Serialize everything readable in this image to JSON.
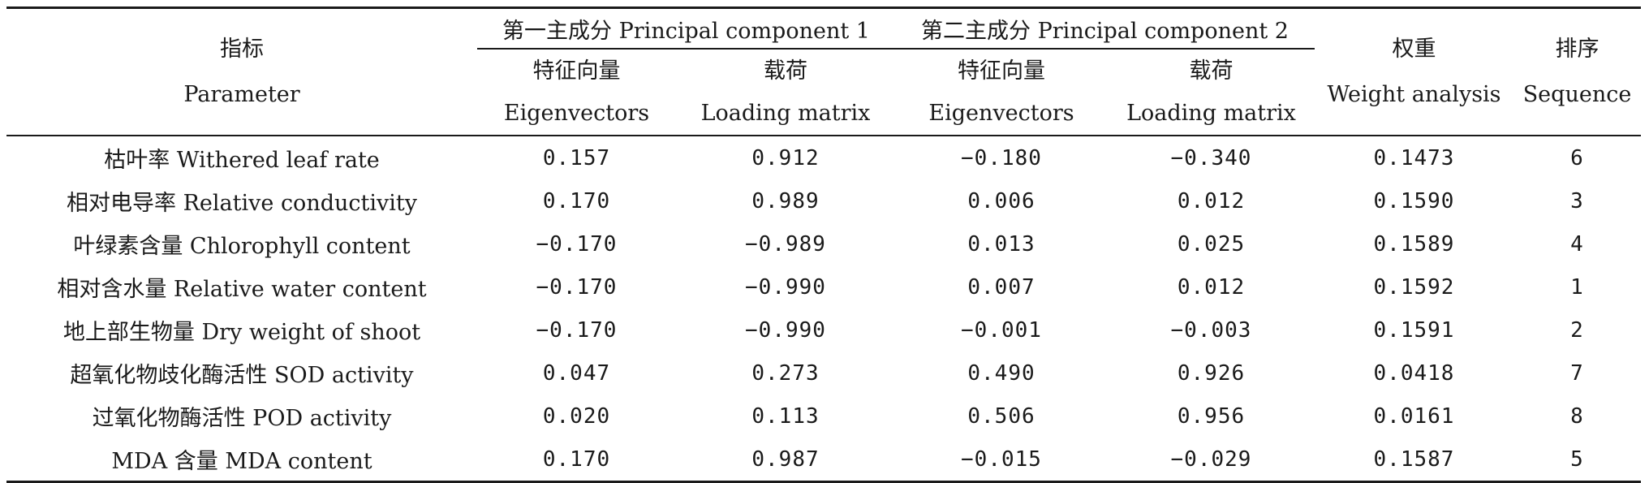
{
  "header": {
    "parameter_cn": "指标",
    "parameter_en": "Parameter",
    "pc1": "第一主成分 Principal component 1",
    "pc2": "第二主成分 Principal component 2",
    "eigen_cn": "特征向量",
    "eigen_en": "Eigenvectors",
    "loading_cn": "载荷",
    "loading_en": "Loading matrix",
    "weight_cn": "权重",
    "weight_en": "Weight analysis",
    "seq_cn": "排序",
    "seq_en": "Sequence"
  },
  "rows": [
    {
      "param": "枯叶率 Withered leaf rate",
      "pc1_eig": "0.157",
      "pc1_load": "0.912",
      "pc2_eig": "−0.180",
      "pc2_load": "−0.340",
      "weight": "0.1473",
      "seq": "6"
    },
    {
      "param": "相对电导率 Relative conductivity",
      "pc1_eig": "0.170",
      "pc1_load": "0.989",
      "pc2_eig": "0.006",
      "pc2_load": "0.012",
      "weight": "0.1590",
      "seq": "3"
    },
    {
      "param": "叶绿素含量 Chlorophyll content",
      "pc1_eig": "−0.170",
      "pc1_load": "−0.989",
      "pc2_eig": "0.013",
      "pc2_load": "0.025",
      "weight": "0.1589",
      "seq": "4"
    },
    {
      "param": "相对含水量 Relative water content",
      "pc1_eig": "−0.170",
      "pc1_load": "−0.990",
      "pc2_eig": "0.007",
      "pc2_load": "0.012",
      "weight": "0.1592",
      "seq": "1"
    },
    {
      "param": "地上部生物量 Dry weight of shoot",
      "pc1_eig": "−0.170",
      "pc1_load": "−0.990",
      "pc2_eig": "−0.001",
      "pc2_load": "−0.003",
      "weight": "0.1591",
      "seq": "2"
    },
    {
      "param": "超氧化物歧化酶活性 SOD activity",
      "pc1_eig": "0.047",
      "pc1_load": "0.273",
      "pc2_eig": "0.490",
      "pc2_load": "0.926",
      "weight": "0.0418",
      "seq": "7"
    },
    {
      "param": "过氧化物酶活性 POD activity",
      "pc1_eig": "0.020",
      "pc1_load": "0.113",
      "pc2_eig": "0.506",
      "pc2_load": "0.956",
      "weight": "0.0161",
      "seq": "8"
    },
    {
      "param": "MDA 含量 MDA content",
      "pc1_eig": "0.170",
      "pc1_load": "0.987",
      "pc2_eig": "−0.015",
      "pc2_load": "−0.029",
      "weight": "0.1587",
      "seq": "5"
    }
  ]
}
